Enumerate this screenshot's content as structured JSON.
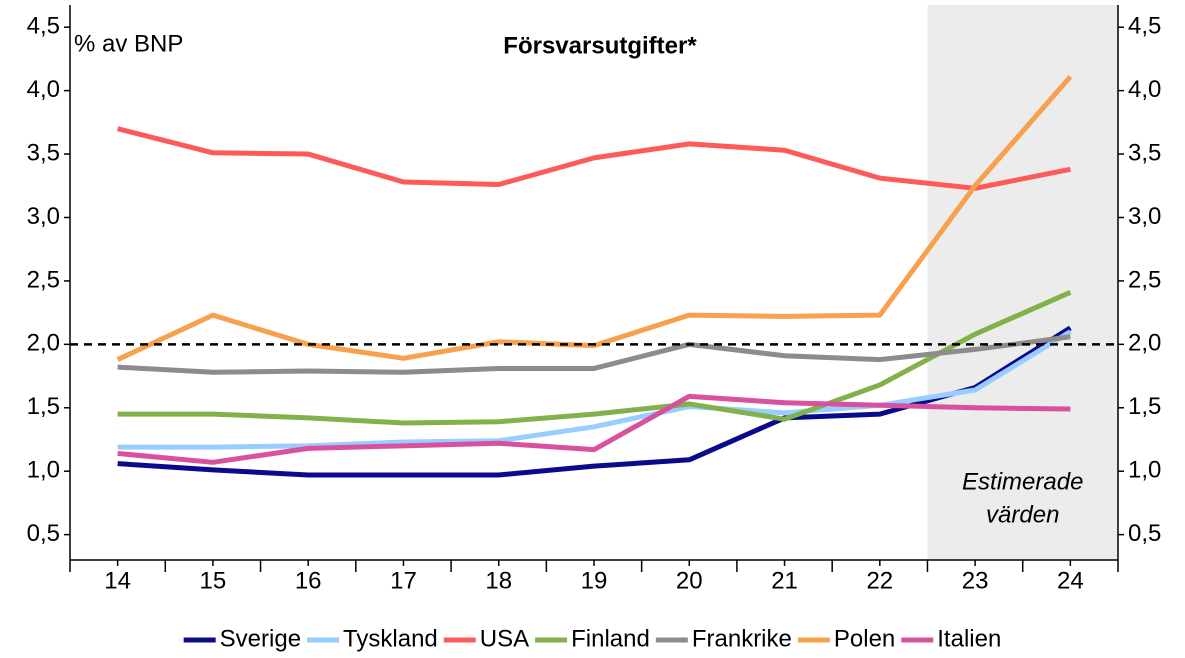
{
  "chart_data": {
    "type": "line",
    "title": "Försvarsutgifter*",
    "y_label": "% av BNP",
    "annotations": [
      "Estimerade",
      "värden"
    ],
    "categories": [
      "14",
      "15",
      "16",
      "17",
      "18",
      "19",
      "20",
      "21",
      "22",
      "23",
      "24"
    ],
    "shaded_categories": [
      "23",
      "24"
    ],
    "reference_line": 2,
    "series": [
      {
        "name": "Sverige",
        "color": "#0a0a8c",
        "values": [
          1.06,
          1.01,
          0.97,
          0.97,
          0.97,
          1.04,
          1.09,
          1.42,
          1.45,
          1.66,
          2.13
        ]
      },
      {
        "name": "Tyskland",
        "color": "#99ccff",
        "values": [
          1.19,
          1.19,
          1.2,
          1.23,
          1.24,
          1.35,
          1.51,
          1.46,
          1.52,
          1.64,
          2.1
        ]
      },
      {
        "name": "USA",
        "color": "#ff5a5a",
        "values": [
          3.7,
          3.51,
          3.5,
          3.28,
          3.26,
          3.47,
          3.58,
          3.53,
          3.31,
          3.23,
          3.38
        ]
      },
      {
        "name": "Finland",
        "color": "#82b04a",
        "values": [
          1.45,
          1.45,
          1.42,
          1.38,
          1.39,
          1.45,
          1.53,
          1.41,
          1.68,
          2.08,
          2.41
        ]
      },
      {
        "name": "Frankrike",
        "color": "#8c8c8c",
        "values": [
          1.82,
          1.78,
          1.79,
          1.78,
          1.81,
          1.81,
          2.0,
          1.91,
          1.88,
          1.96,
          2.06
        ]
      },
      {
        "name": "Polen",
        "color": "#f7a04d",
        "values": [
          1.88,
          2.23,
          2.0,
          1.89,
          2.02,
          1.99,
          2.23,
          2.22,
          2.23,
          3.25,
          4.11
        ]
      },
      {
        "name": "Italien",
        "color": "#d9509f",
        "values": [
          1.14,
          1.07,
          1.18,
          1.2,
          1.22,
          1.17,
          1.59,
          1.54,
          1.52,
          1.5,
          1.49
        ]
      }
    ],
    "ylim": [
      0.3,
      4.675
    ],
    "yticks": [
      {
        "value": 0.5,
        "label": "0,5"
      },
      {
        "value": 1.0,
        "label": "1,0"
      },
      {
        "value": 1.5,
        "label": "1,5"
      },
      {
        "value": 2.0,
        "label": "2,0"
      },
      {
        "value": 2.5,
        "label": "2,5"
      },
      {
        "value": 3.0,
        "label": "3,0"
      },
      {
        "value": 3.5,
        "label": "3,5"
      },
      {
        "value": 4.0,
        "label": "4,0"
      },
      {
        "value": 4.5,
        "label": "4,5"
      }
    ],
    "y2lim": [
      0.3,
      4.675
    ],
    "y2ticks": [
      {
        "value": 0.5,
        "label": "0,5"
      },
      {
        "value": 1.0,
        "label": "1,0"
      },
      {
        "value": 1.5,
        "label": "1,5"
      },
      {
        "value": 2.0,
        "label": "2,0"
      },
      {
        "value": 2.5,
        "label": "2,5"
      },
      {
        "value": 3.0,
        "label": "3,0"
      },
      {
        "value": 3.5,
        "label": "3,5"
      },
      {
        "value": 4.0,
        "label": "4,0"
      },
      {
        "value": 4.5,
        "label": "4,5"
      }
    ],
    "legend": "bottom"
  }
}
